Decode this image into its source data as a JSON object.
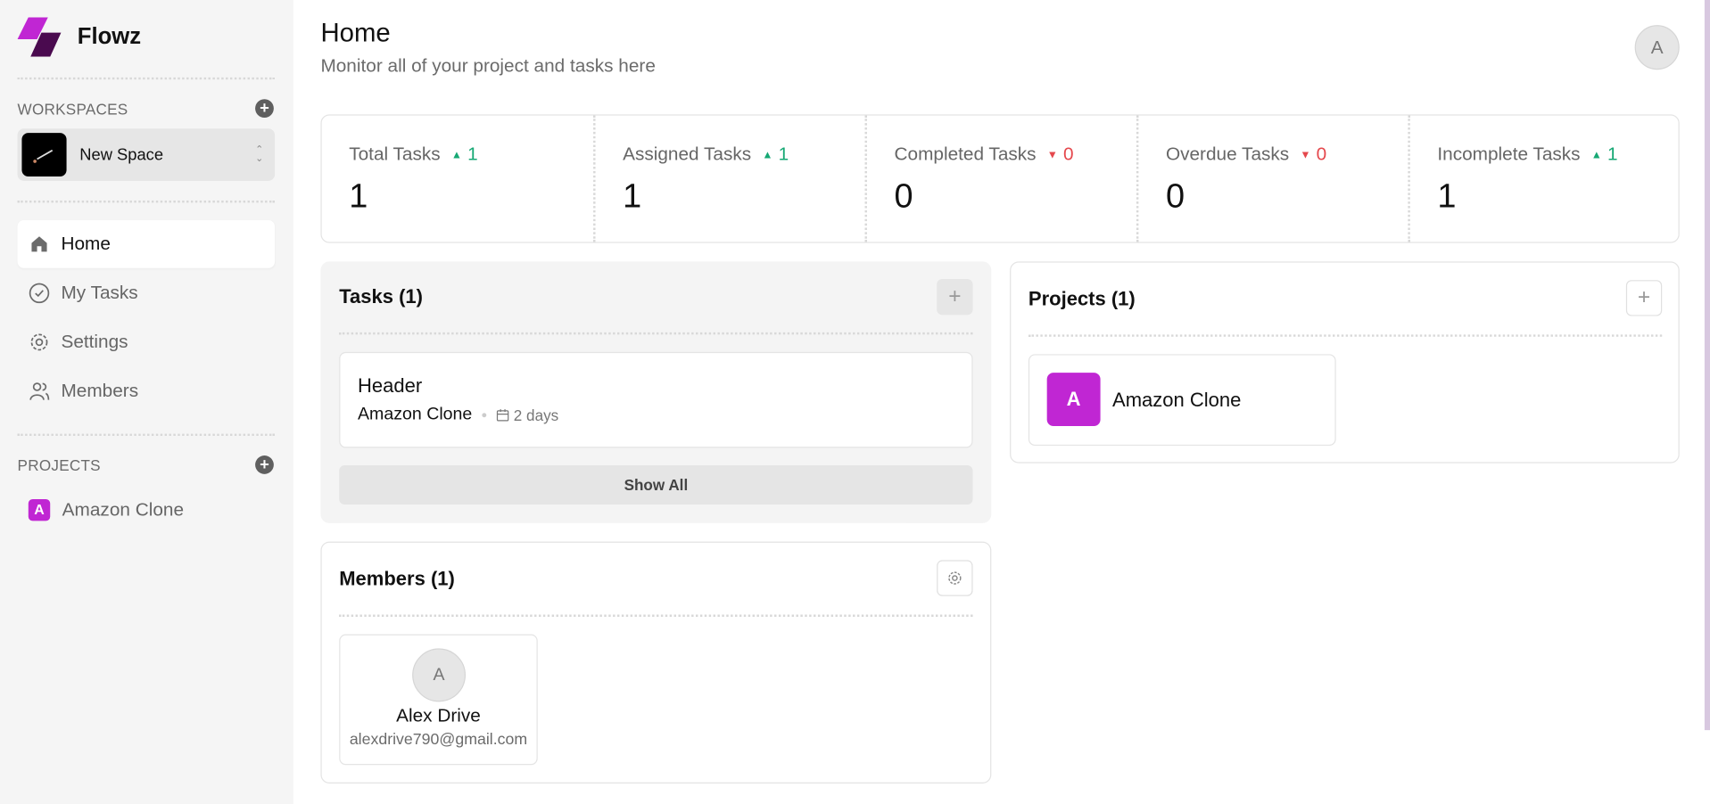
{
  "app": {
    "name": "Flowz",
    "brand_color": "#c026d3",
    "brand_dark": "#4a0a4f"
  },
  "sidebar": {
    "workspaces_label": "WORKSPACES",
    "workspace": {
      "name": "New Space"
    },
    "nav": [
      {
        "label": "Home",
        "icon": "home-icon",
        "active": true
      },
      {
        "label": "My Tasks",
        "icon": "check-circle-icon"
      },
      {
        "label": "Settings",
        "icon": "gear-icon"
      },
      {
        "label": "Members",
        "icon": "users-icon"
      }
    ],
    "projects_label": "PROJECTS",
    "projects": [
      {
        "initial": "A",
        "name": "Amazon Clone"
      }
    ]
  },
  "header": {
    "title": "Home",
    "subtitle": "Monitor all of your project and tasks here",
    "avatar": "A"
  },
  "stats": [
    {
      "label": "Total Tasks",
      "trend": "up",
      "change": "1",
      "value": "1"
    },
    {
      "label": "Assigned Tasks",
      "trend": "up",
      "change": "1",
      "value": "1"
    },
    {
      "label": "Completed Tasks",
      "trend": "down",
      "change": "0",
      "value": "0"
    },
    {
      "label": "Overdue Tasks",
      "trend": "down",
      "change": "0",
      "value": "0"
    },
    {
      "label": "Incomplete Tasks",
      "trend": "up",
      "change": "1",
      "value": "1"
    }
  ],
  "tasks": {
    "title": "Tasks (1)",
    "items": [
      {
        "title": "Header",
        "project": "Amazon Clone",
        "due": "2 days"
      }
    ],
    "show_all": "Show All"
  },
  "members": {
    "title": "Members (1)",
    "items": [
      {
        "initial": "A",
        "name": "Alex Drive",
        "email": "alexdrive790@gmail.com"
      }
    ]
  },
  "projects": {
    "title": "Projects (1)",
    "items": [
      {
        "initial": "A",
        "name": "Amazon Clone"
      }
    ]
  },
  "colors": {
    "up": "#16a874",
    "down": "#e5484d"
  }
}
